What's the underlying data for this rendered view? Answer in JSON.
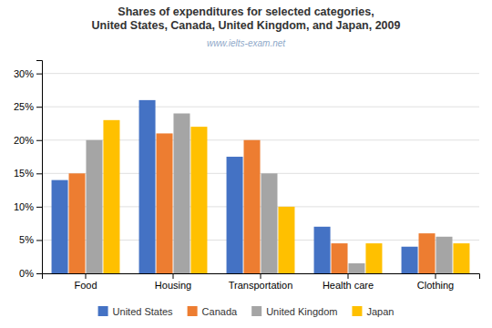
{
  "chart_data": {
    "type": "bar",
    "title": "Shares of expenditures for selected categories,\nUnited States, Canada, United Kingdom, and Japan, 2009",
    "annotations": [
      "www.ielts-exam.net"
    ],
    "categories": [
      "Food",
      "Housing",
      "Transportation",
      "Health care",
      "Clothing"
    ],
    "series": [
      {
        "name": "United States",
        "color": "#4472C4",
        "values": [
          14,
          26,
          17.5,
          7,
          4
        ]
      },
      {
        "name": "Canada",
        "color": "#ED7D31",
        "values": [
          15,
          21,
          20,
          4.5,
          6
        ]
      },
      {
        "name": "United Kingdom",
        "color": "#A5A5A5",
        "values": [
          20,
          24,
          15,
          1.5,
          5.5
        ]
      },
      {
        "name": "Japan",
        "color": "#FFC000",
        "values": [
          23,
          22,
          10,
          4.5,
          4.5
        ]
      }
    ],
    "ylim": [
      0,
      32
    ],
    "yticks": [
      {
        "value": 0,
        "label": "0%"
      },
      {
        "value": 5,
        "label": "5%"
      },
      {
        "value": 10,
        "label": "10%"
      },
      {
        "value": 15,
        "label": "15%"
      },
      {
        "value": 20,
        "label": "20%"
      },
      {
        "value": 25,
        "label": "25%"
      },
      {
        "value": 30,
        "label": "30%"
      }
    ],
    "grid": true,
    "legend": "bottom"
  }
}
